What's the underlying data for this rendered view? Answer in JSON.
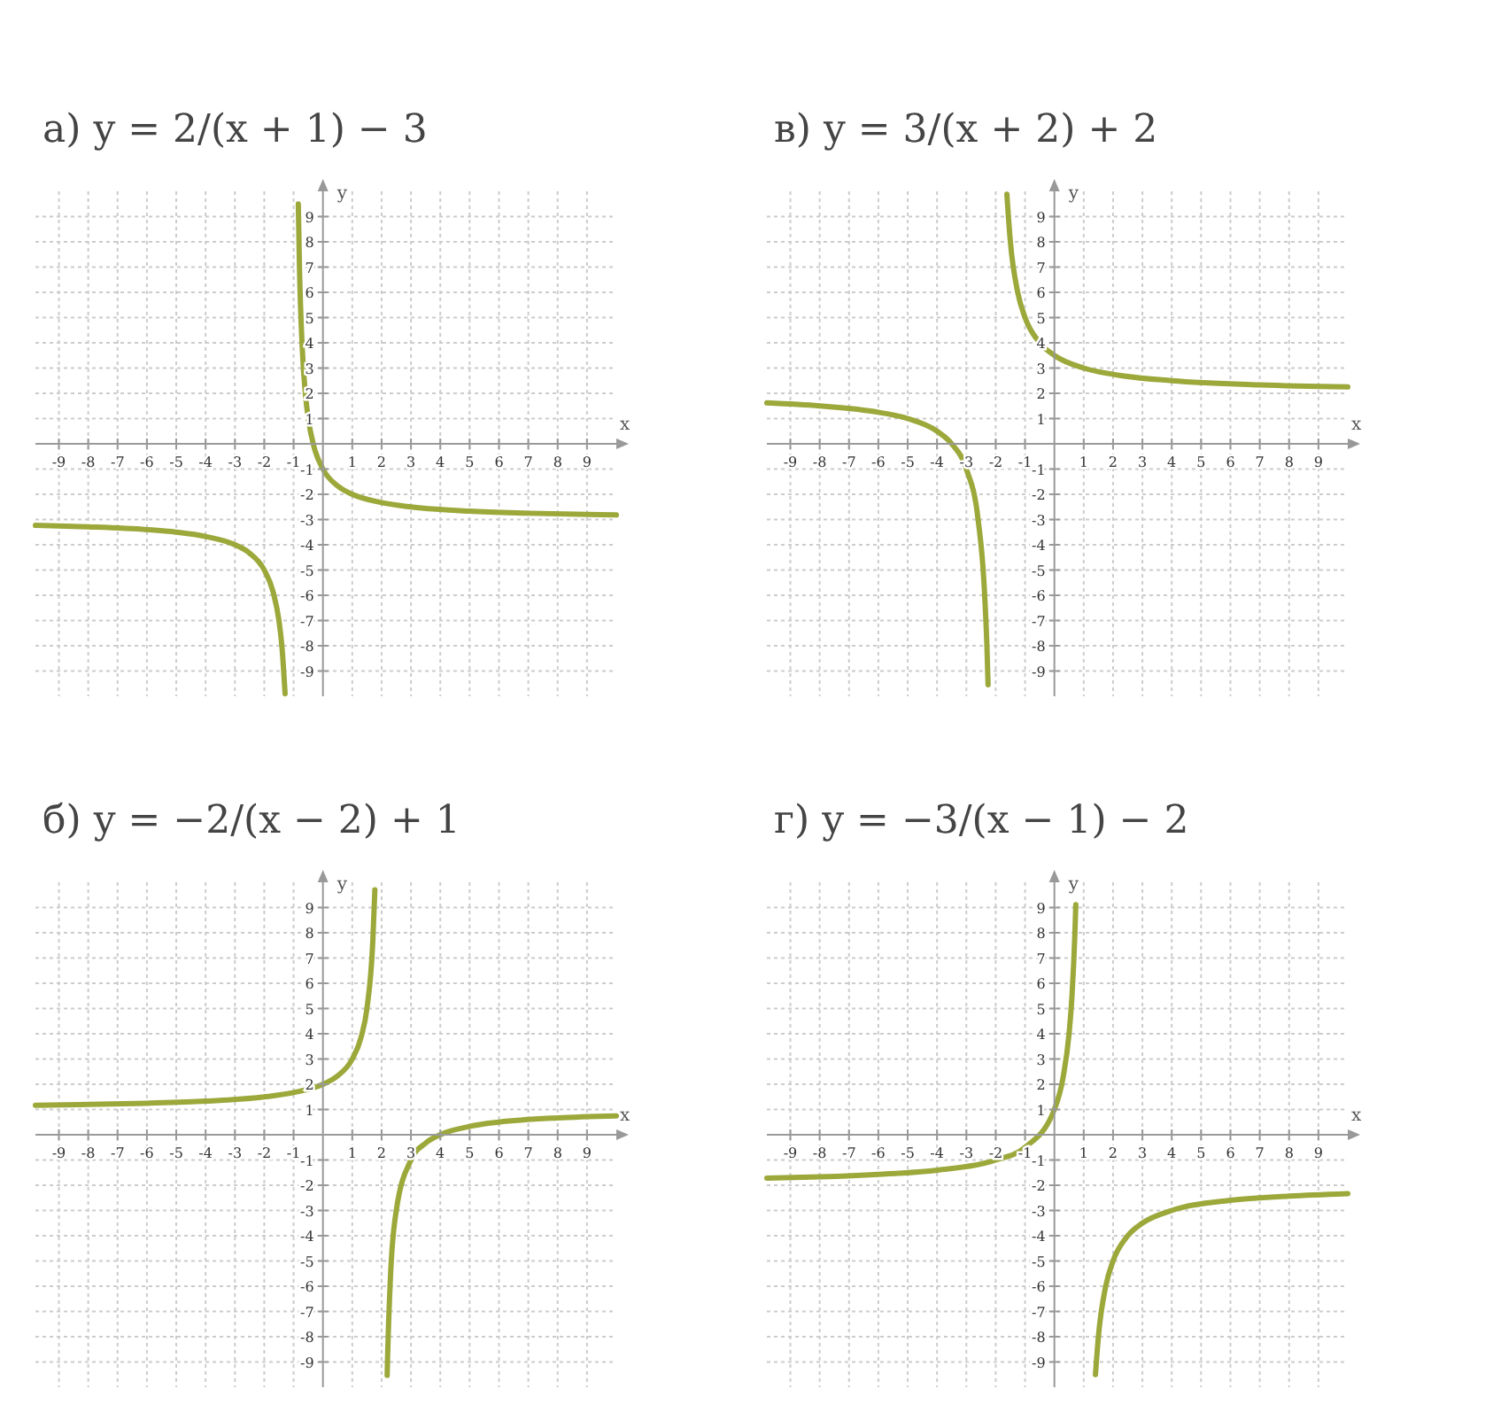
{
  "chart_data": [
    {
      "type": "line",
      "title": "а) y = 2/(x + 1) − 3",
      "xlabel": "x",
      "ylabel": "y",
      "xlim": [
        -9.8,
        10
      ],
      "ylim": [
        -10,
        10
      ],
      "xticks": [
        -9,
        -8,
        -7,
        -6,
        -5,
        -4,
        -3,
        -2,
        -1,
        1,
        2,
        3,
        4,
        5,
        6,
        7,
        8,
        9
      ],
      "yticks": [
        -9,
        -8,
        -7,
        -6,
        -5,
        -4,
        -3,
        -2,
        -1,
        1,
        2,
        3,
        4,
        5,
        6,
        7,
        8,
        9
      ],
      "grid": true,
      "series": [
        {
          "color": "#9ca83a",
          "x": [
            -9.8,
            -8,
            -6,
            -5,
            -4,
            -3,
            -2.5,
            -2,
            -1.7,
            -1.5,
            -1.4,
            -1.29
          ],
          "values": [
            -3.23,
            -3.29,
            -3.4,
            -3.5,
            -3.67,
            -4,
            -4.33,
            -5,
            -5.86,
            -7,
            -8,
            -9.9
          ]
        },
        {
          "color": "#9ca83a",
          "x": [
            -0.84,
            -0.8,
            -0.7,
            -0.6,
            -0.5,
            -0.3,
            0,
            0.5,
            1,
            2,
            3,
            5,
            7,
            10
          ],
          "values": [
            9.5,
            7,
            3.67,
            2,
            1,
            -0.14,
            -1,
            -1.67,
            -2,
            -2.33,
            -2.5,
            -2.67,
            -2.75,
            -2.82
          ]
        }
      ]
    },
    {
      "type": "line",
      "title": "в) y = 3/(x + 2) + 2",
      "xlabel": "x",
      "ylabel": "y",
      "xlim": [
        -9.8,
        10
      ],
      "ylim": [
        -10,
        10
      ],
      "xticks": [
        -9,
        -8,
        -7,
        -6,
        -5,
        -4,
        -3,
        -2,
        -1,
        1,
        2,
        3,
        4,
        5,
        6,
        7,
        8,
        9
      ],
      "yticks": [
        -9,
        -8,
        -7,
        -6,
        -5,
        -4,
        -3,
        -2,
        -1,
        1,
        2,
        3,
        4,
        5,
        6,
        7,
        8,
        9
      ],
      "grid": true,
      "series": [
        {
          "color": "#9ca83a",
          "x": [
            -9.8,
            -8,
            -6,
            -5,
            -4,
            -3.5,
            -3,
            -2.6,
            -2.4,
            -2.3,
            -2.26
          ],
          "values": [
            1.62,
            1.5,
            1.25,
            1,
            0.5,
            0,
            -1,
            -3,
            -5.5,
            -8,
            -9.54
          ]
        },
        {
          "color": "#9ca83a",
          "x": [
            -1.62,
            -1.5,
            -1.25,
            -1,
            -0.5,
            0,
            1,
            2,
            4,
            7,
            10
          ],
          "values": [
            9.89,
            8,
            6,
            5,
            4,
            3.5,
            3,
            2.75,
            2.5,
            2.33,
            2.25
          ]
        }
      ]
    },
    {
      "type": "line",
      "title": "б) y = −2/(x − 2) + 1",
      "xlabel": "x",
      "ylabel": "y",
      "xlim": [
        -9.8,
        10
      ],
      "ylim": [
        -10,
        10
      ],
      "xticks": [
        -9,
        -8,
        -7,
        -6,
        -5,
        -4,
        -3,
        -2,
        -1,
        1,
        2,
        3,
        4,
        5,
        6,
        7,
        8,
        9
      ],
      "yticks": [
        -9,
        -8,
        -7,
        -6,
        -5,
        -4,
        -3,
        -2,
        -1,
        1,
        2,
        3,
        4,
        5,
        6,
        7,
        8,
        9
      ],
      "grid": true,
      "series": [
        {
          "color": "#9ca83a",
          "x": [
            -9.8,
            -8,
            -6,
            -4,
            -2,
            -1,
            0,
            0.5,
            1,
            1.3,
            1.5,
            1.7,
            1.77
          ],
          "values": [
            1.17,
            1.2,
            1.25,
            1.33,
            1.5,
            1.67,
            2,
            2.33,
            3,
            3.86,
            5,
            7.67,
            9.7
          ]
        },
        {
          "color": "#9ca83a",
          "x": [
            2.19,
            2.2,
            2.3,
            2.5,
            3,
            3.5,
            4,
            5,
            6,
            8,
            10
          ],
          "values": [
            -9.53,
            -9,
            -5.67,
            -3,
            -1,
            -0.33,
            0,
            0.33,
            0.5,
            0.67,
            0.75
          ]
        }
      ]
    },
    {
      "type": "line",
      "title": "г) y = −3/(x − 1) − 2",
      "xlabel": "x",
      "ylabel": "y",
      "xlim": [
        -9.8,
        10
      ],
      "ylim": [
        -10,
        10
      ],
      "xticks": [
        -9,
        -8,
        -7,
        -6,
        -5,
        -4,
        -3,
        -2,
        -1,
        1,
        2,
        3,
        4,
        5,
        6,
        7,
        8,
        9
      ],
      "yticks": [
        -9,
        -8,
        -7,
        -6,
        -5,
        -4,
        -3,
        -2,
        -1,
        1,
        2,
        3,
        4,
        5,
        6,
        7,
        8,
        9
      ],
      "grid": true,
      "series": [
        {
          "color": "#9ca83a",
          "x": [
            -9.8,
            -8,
            -6,
            -4,
            -2,
            -1,
            0,
            0.3,
            0.5,
            0.6,
            0.7,
            0.73
          ],
          "values": [
            -1.72,
            -1.67,
            -1.57,
            -1.4,
            -1,
            -0.5,
            1,
            2.29,
            4,
            5.5,
            8,
            9.11
          ]
        },
        {
          "color": "#9ca83a",
          "x": [
            1.4,
            1.5,
            1.75,
            2,
            2.5,
            3,
            4,
            6,
            8,
            10
          ],
          "values": [
            -9.5,
            -8,
            -6,
            -5,
            -4,
            -3.5,
            -3,
            -2.6,
            -2.43,
            -2.33
          ]
        }
      ]
    }
  ]
}
